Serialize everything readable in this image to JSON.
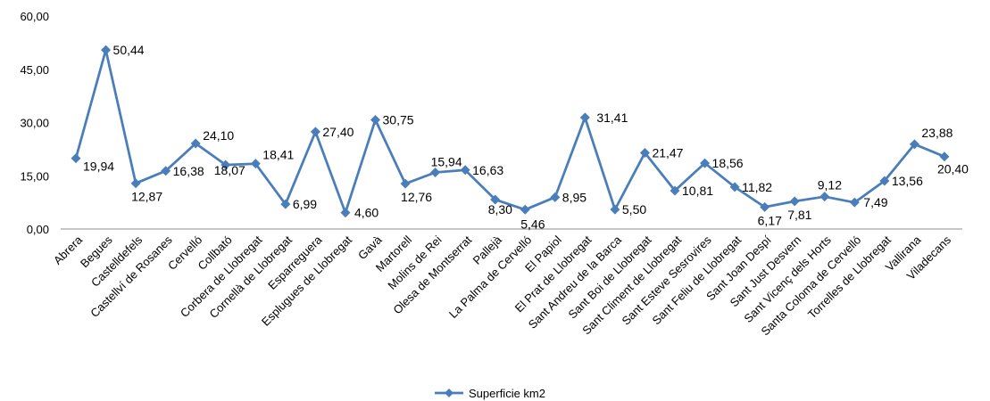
{
  "chart_data": {
    "type": "line",
    "title": "",
    "xlabel": "",
    "ylabel": "",
    "ylim": [
      0,
      60
    ],
    "yticks": [
      "0,00",
      "15,00",
      "30,00",
      "45,00",
      "60,00"
    ],
    "grid": false,
    "legend_position": "bottom",
    "categories": [
      "Abrera",
      "Begues",
      "Castelldefels",
      "Castellví de Rosanes",
      "Cervelló",
      "Collbató",
      "Corbera de Llobregat",
      "Cornellà de Llobregat",
      "Esparreguera",
      "Esplugues de Llobregat",
      "Gavà",
      "Martorell",
      "Molins de Rei",
      "Olesa de Montserrat",
      "Pallejà",
      "La Palma de Cervelló",
      "El Papiol",
      "El Prat de Llobregat",
      "Sant Andreu de la Barca",
      "Sant Boi de Llobregat",
      "Sant Climent de Llobregat",
      "Sant Esteve Sesrovires",
      "Sant Feliu de Llobregat",
      "Sant Joan Despí",
      "Sant Just Desvern",
      "Sant Vicenç dels Horts",
      "Santa Coloma de Cervelló",
      "Torrelles de Llobregat",
      "Vallirana",
      "Viladecans"
    ],
    "series": [
      {
        "name": "Superficie km2",
        "color": "#4a7ebb",
        "values": [
          19.94,
          50.44,
          12.87,
          16.38,
          24.1,
          18.07,
          18.41,
          6.99,
          27.4,
          4.6,
          30.75,
          12.76,
          15.94,
          16.63,
          8.3,
          5.46,
          8.95,
          31.41,
          5.5,
          21.47,
          10.81,
          18.56,
          11.82,
          6.17,
          7.81,
          9.12,
          7.49,
          13.56,
          23.88,
          20.4
        ],
        "labels": [
          "19,94",
          "50,44",
          "12,87",
          "16,38",
          "24,10",
          "18,07",
          "18,41",
          "6,99",
          "27,40",
          "4,60",
          "30,75",
          "12,76",
          "15,94",
          "16,63",
          "8,30",
          "5,46",
          "8,95",
          "31,41",
          "5,50",
          "21,47",
          "10,81",
          "18,56",
          "11,82",
          "6,17",
          "7,81",
          "9,12",
          "7,49",
          "13,56",
          "23,88",
          "20,40"
        ]
      }
    ]
  }
}
